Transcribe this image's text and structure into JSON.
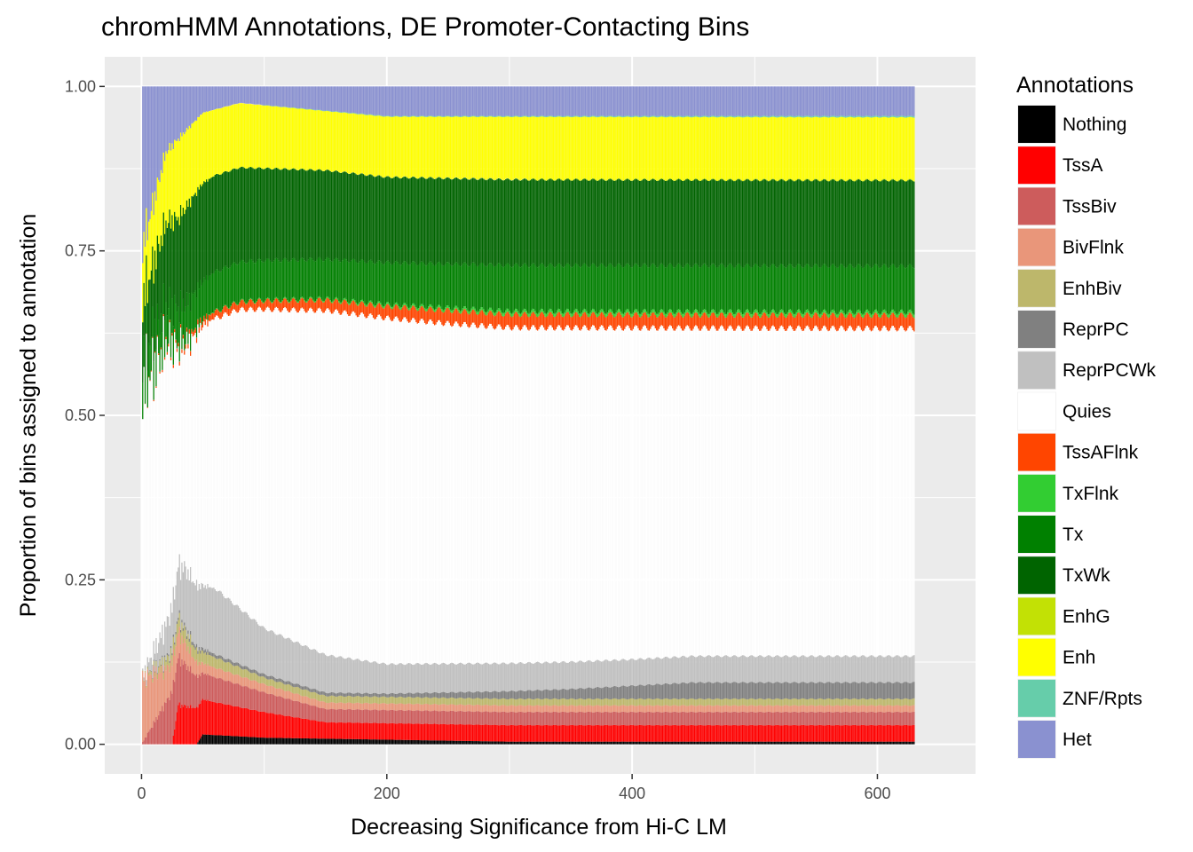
{
  "chart_data": {
    "type": "bar",
    "stacked": true,
    "position": "fill",
    "title": "chromHMM Annotations, DE Promoter-Contacting Bins",
    "xlabel": "Decreasing Significance from Hi-C LM",
    "ylabel": "Proportion of bins assigned to annotation",
    "xlim": [
      -30,
      680
    ],
    "ylim": [
      -0.045,
      1.045
    ],
    "x_ticks": [
      0,
      200,
      400,
      600
    ],
    "x_tick_labels": [
      "0",
      "200",
      "400",
      "600"
    ],
    "y_ticks": [
      0,
      0.25,
      0.5,
      0.75,
      1.0
    ],
    "y_tick_labels": [
      "0.00",
      "0.25",
      "0.50",
      "0.75",
      "1.00"
    ],
    "grid": true,
    "n_bars": 630,
    "legend": {
      "title": "Annotations",
      "position": "right",
      "entries": [
        {
          "name": "Nothing",
          "color": "#000000"
        },
        {
          "name": "TssA",
          "color": "#ff0000"
        },
        {
          "name": "TssBiv",
          "color": "#cd5c5c"
        },
        {
          "name": "BivFlnk",
          "color": "#e9967a"
        },
        {
          "name": "EnhBiv",
          "color": "#bdb76b"
        },
        {
          "name": "ReprPC",
          "color": "#808080"
        },
        {
          "name": "ReprPCWk",
          "color": "#c0c0c0"
        },
        {
          "name": "Quies",
          "color": "#ffffff"
        },
        {
          "name": "TssAFlnk",
          "color": "#ff4500"
        },
        {
          "name": "TxFlnk",
          "color": "#32cd32"
        },
        {
          "name": "Tx",
          "color": "#008000"
        },
        {
          "name": "TxWk",
          "color": "#006400"
        },
        {
          "name": "EnhG",
          "color": "#c2e105"
        },
        {
          "name": "Enh",
          "color": "#ffff00"
        },
        {
          "name": "ZNF/Rpts",
          "color": "#66cdaa"
        },
        {
          "name": "Het",
          "color": "#8a91d0"
        }
      ]
    },
    "series_profiles": [
      {
        "name": "Nothing",
        "points": [
          [
            0,
            0.0
          ],
          [
            45,
            0.0
          ],
          [
            50,
            0.015
          ],
          [
            100,
            0.01
          ],
          [
            300,
            0.004
          ],
          [
            630,
            0.004
          ]
        ]
      },
      {
        "name": "TssA",
        "points": [
          [
            0,
            0.0
          ],
          [
            25,
            0.0
          ],
          [
            30,
            0.06
          ],
          [
            60,
            0.05
          ],
          [
            150,
            0.025
          ],
          [
            400,
            0.025
          ],
          [
            630,
            0.025
          ]
        ]
      },
      {
        "name": "TssBiv",
        "points": [
          [
            0,
            0.0
          ],
          [
            25,
            0.08
          ],
          [
            50,
            0.04
          ],
          [
            150,
            0.02
          ],
          [
            300,
            0.02
          ],
          [
            630,
            0.02
          ]
        ]
      },
      {
        "name": "BivFlnk",
        "points": [
          [
            0,
            0.1
          ],
          [
            20,
            0.05
          ],
          [
            50,
            0.015
          ],
          [
            150,
            0.01
          ],
          [
            630,
            0.01
          ]
        ]
      },
      {
        "name": "EnhBiv",
        "points": [
          [
            0,
            0.0
          ],
          [
            30,
            0.02
          ],
          [
            100,
            0.01
          ],
          [
            630,
            0.01
          ]
        ]
      },
      {
        "name": "ReprPC",
        "points": [
          [
            0,
            0.0
          ],
          [
            40,
            0.005
          ],
          [
            200,
            0.005
          ],
          [
            350,
            0.015
          ],
          [
            450,
            0.025
          ],
          [
            630,
            0.025
          ]
        ]
      },
      {
        "name": "ReprPCWk",
        "points": [
          [
            0,
            0.0
          ],
          [
            35,
            0.09
          ],
          [
            60,
            0.1
          ],
          [
            100,
            0.07
          ],
          [
            200,
            0.045
          ],
          [
            400,
            0.04
          ],
          [
            630,
            0.04
          ]
        ]
      },
      {
        "name": "TssAFlnk",
        "points": [
          [
            0,
            0.0
          ],
          [
            60,
            0.01
          ],
          [
            130,
            0.015
          ],
          [
            250,
            0.02
          ],
          [
            630,
            0.02
          ]
        ]
      },
      {
        "name": "TxFlnk",
        "points": [
          [
            0,
            0.0
          ],
          [
            150,
            0.002
          ],
          [
            300,
            0.005
          ],
          [
            630,
            0.005
          ]
        ]
      },
      {
        "name": "Tx",
        "points": [
          [
            0,
            0.05
          ],
          [
            60,
            0.06
          ],
          [
            150,
            0.06
          ],
          [
            300,
            0.07
          ],
          [
            630,
            0.07
          ]
        ]
      },
      {
        "name": "TxWk",
        "points": [
          [
            0,
            0.08
          ],
          [
            15,
            0.12
          ],
          [
            40,
            0.15
          ],
          [
            100,
            0.14
          ],
          [
            200,
            0.13
          ],
          [
            630,
            0.13
          ]
        ]
      },
      {
        "name": "EnhG",
        "points": [
          [
            0,
            0.0
          ],
          [
            630,
            0.001
          ]
        ]
      },
      {
        "name": "Enh",
        "points": [
          [
            0,
            0.08
          ],
          [
            30,
            0.12
          ],
          [
            60,
            0.1
          ],
          [
            150,
            0.09
          ],
          [
            300,
            0.095
          ],
          [
            630,
            0.095
          ]
        ]
      },
      {
        "name": "ZNF/Rpts",
        "points": [
          [
            0,
            0.0
          ],
          [
            200,
            0.001
          ],
          [
            630,
            0.002
          ]
        ]
      },
      {
        "name": "Het",
        "points": [
          [
            0,
            0.25
          ],
          [
            20,
            0.1
          ],
          [
            50,
            0.04
          ],
          [
            80,
            0.025
          ],
          [
            200,
            0.045
          ],
          [
            630,
            0.045
          ]
        ]
      }
    ]
  }
}
